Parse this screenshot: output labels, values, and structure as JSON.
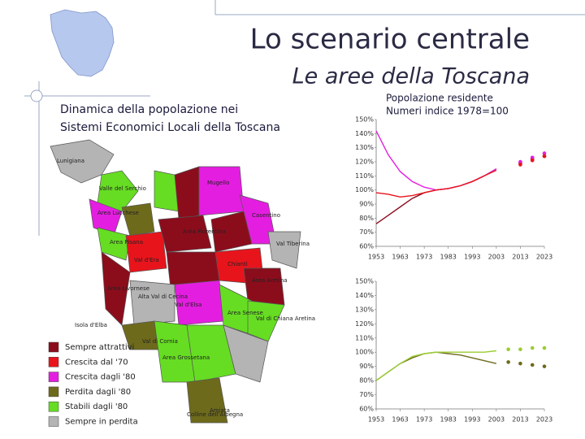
{
  "slide": {
    "title": "Lo scenario centrale",
    "subtitle": "Le aree della Toscana",
    "map_title_lines": [
      "Dinamica della popolazione nei",
      "Sistemi Economici Locali della Toscana"
    ]
  },
  "map": {
    "labels": [
      "Lunigiana",
      "Valle del Serchio",
      "Area Lucchese",
      "Area Pisana",
      "Val d'Era",
      "Area Livornese",
      "Alta Val di Cecina",
      "Val di Cornia",
      "Isola d'Elba",
      "Area Grossetana",
      "Amiata",
      "Colline dell'Albegna",
      "Area Senese",
      "Chianti",
      "Val d'Elsa",
      "Area Fiorentina",
      "Mugello",
      "Casentino",
      "Val Tiberina",
      "Area Aretina",
      "Val di Chiana Aretina"
    ],
    "legend": [
      {
        "label": "Sempre attrattivi",
        "color": "#8b0d1c"
      },
      {
        "label": "Crescita dal '70",
        "color": "#e8141c"
      },
      {
        "label": "Crescita dagli '80",
        "color": "#e41ee0"
      },
      {
        "label": "Perdita dagli '80",
        "color": "#6e6a1c"
      },
      {
        "label": "Stabili dagli '80",
        "color": "#66dd22"
      },
      {
        "label": "Sempre in perdita",
        "color": "#b4b4b4"
      }
    ]
  },
  "chart_data": [
    {
      "type": "line",
      "title": "Popolazione residente",
      "subtitle": "Numeri indice 1978=100",
      "x": [
        1953,
        1958,
        1963,
        1968,
        1973,
        1978,
        1983,
        1988,
        1993,
        1998,
        2003,
        2008,
        2013,
        2018,
        2023
      ],
      "xlim": [
        1953,
        2023
      ],
      "xticks": [
        1953,
        1963,
        1973,
        1983,
        1993,
        2003,
        2013,
        2023
      ],
      "ylim": [
        60,
        150
      ],
      "yticks": [
        {
          "value": 60,
          "label": "60%"
        },
        {
          "value": 70,
          "label": "70%"
        },
        {
          "value": 80,
          "label": "80%"
        },
        {
          "value": 90,
          "label": "90%"
        },
        {
          "value": 100,
          "label": "100%"
        },
        {
          "value": 110,
          "label": "110%"
        },
        {
          "value": 120,
          "label": "120%"
        },
        {
          "value": 130,
          "label": "130%"
        },
        {
          "value": 140,
          "label": "140%"
        },
        {
          "value": 150,
          "label": "150%"
        }
      ],
      "series": [
        {
          "color": "#8b0d1c",
          "style": "line",
          "values": [
            76,
            82,
            88,
            94,
            98,
            100,
            101,
            103,
            106,
            110,
            115,
            null,
            null,
            null,
            null
          ]
        },
        {
          "color": "#e41ee0",
          "style": "line",
          "values": [
            142,
            125,
            113,
            106,
            102,
            100,
            101,
            103,
            106,
            110,
            115,
            null,
            null,
            null,
            null
          ]
        },
        {
          "color": "#e8141c",
          "style": "line",
          "values": [
            98,
            97,
            95,
            96,
            98,
            100,
            101,
            103,
            106,
            110,
            114,
            null,
            null,
            null,
            null
          ]
        },
        {
          "color": "#8b0d1c",
          "style": "dots",
          "values": [
            null,
            null,
            null,
            null,
            null,
            null,
            null,
            null,
            null,
            null,
            null,
            null,
            119,
            122,
            124
          ]
        },
        {
          "color": "#e41ee0",
          "style": "dots",
          "values": [
            null,
            null,
            null,
            null,
            null,
            null,
            null,
            null,
            null,
            null,
            null,
            null,
            120,
            123,
            126
          ]
        },
        {
          "color": "#e8141c",
          "style": "dots",
          "values": [
            null,
            null,
            null,
            null,
            null,
            null,
            null,
            null,
            null,
            null,
            null,
            null,
            118,
            121,
            124
          ]
        }
      ]
    },
    {
      "type": "line",
      "x": [
        1953,
        1958,
        1963,
        1968,
        1973,
        1978,
        1983,
        1988,
        1993,
        1998,
        2003,
        2008,
        2013,
        2018,
        2023
      ],
      "xlim": [
        1953,
        2023
      ],
      "xticks": [
        1953,
        1963,
        1973,
        1983,
        1993,
        2003,
        2013,
        2023
      ],
      "ylim": [
        60,
        150
      ],
      "yticks": [
        {
          "value": 60,
          "label": "60%"
        },
        {
          "value": 70,
          "label": "70%"
        },
        {
          "value": 80,
          "label": "80%"
        },
        {
          "value": 90,
          "label": "90%"
        },
        {
          "value": 100,
          "label": "100%"
        },
        {
          "value": 110,
          "label": "110%"
        },
        {
          "value": 120,
          "label": "120%"
        },
        {
          "value": 130,
          "label": "130%"
        },
        {
          "value": 140,
          "label": "140%"
        },
        {
          "value": 150,
          "label": "150%"
        }
      ],
      "series": [
        {
          "color": "#6e6a1c",
          "style": "line",
          "values": [
            80,
            86,
            92,
            96,
            99,
            100,
            99,
            98,
            96,
            94,
            92,
            null,
            null,
            null,
            null
          ]
        },
        {
          "color": "#9acd32",
          "style": "line",
          "values": [
            80,
            86,
            92,
            97,
            99,
            100,
            100,
            100,
            100,
            100,
            101,
            null,
            null,
            null,
            null
          ]
        },
        {
          "color": "#6e6a1c",
          "style": "dots",
          "values": [
            null,
            null,
            null,
            null,
            null,
            null,
            null,
            null,
            null,
            null,
            null,
            93,
            92,
            91,
            90
          ]
        },
        {
          "color": "#9acd32",
          "style": "dots",
          "values": [
            null,
            null,
            null,
            null,
            null,
            null,
            null,
            null,
            null,
            null,
            null,
            102,
            102,
            103,
            103
          ]
        }
      ]
    }
  ]
}
